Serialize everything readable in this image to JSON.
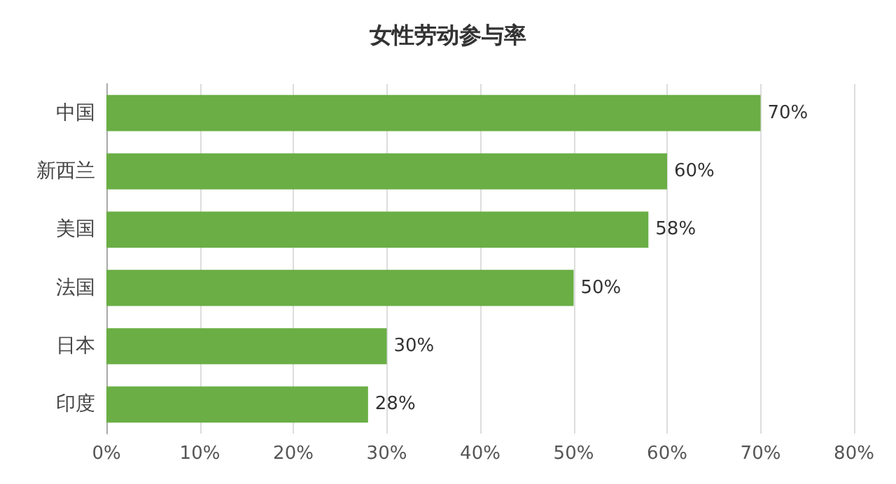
{
  "chart_data": {
    "type": "bar",
    "orientation": "horizontal",
    "title": "女性劳动参与率",
    "categories": [
      "中国",
      "新西兰",
      "美国",
      "法国",
      "日本",
      "印度"
    ],
    "values": [
      70,
      60,
      58,
      50,
      30,
      28
    ],
    "value_labels": [
      "70%",
      "60%",
      "58%",
      "50%",
      "30%",
      "28%"
    ],
    "color": "#6aae45",
    "xlim": [
      0,
      80
    ],
    "xticks": [
      {
        "value": 0,
        "label": "0%"
      },
      {
        "value": 10,
        "label": "10%"
      },
      {
        "value": 20,
        "label": "20%"
      },
      {
        "value": 30,
        "label": "30%"
      },
      {
        "value": 40,
        "label": "40%"
      },
      {
        "value": 50,
        "label": "50%"
      },
      {
        "value": 60,
        "label": "60%"
      },
      {
        "value": 70,
        "label": "70%"
      },
      {
        "value": 80,
        "label": "80%"
      }
    ],
    "grid": "x"
  }
}
